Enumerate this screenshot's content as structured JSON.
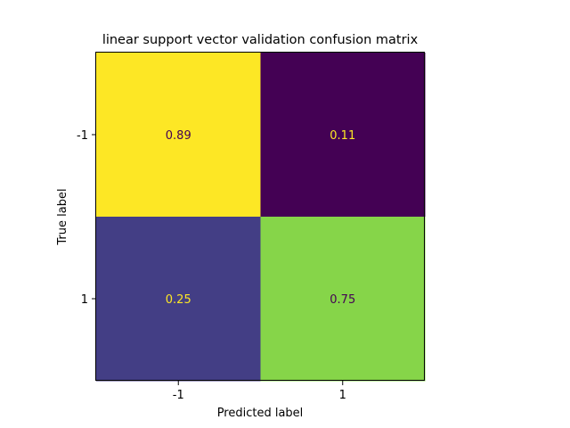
{
  "chart_data": {
    "type": "heatmap",
    "title": "linear support vector validation confusion matrix",
    "xlabel": "Predicted label",
    "ylabel": "True label",
    "x_categories": [
      "-1",
      "1"
    ],
    "y_categories": [
      "-1",
      "1"
    ],
    "values": [
      [
        0.89,
        0.11
      ],
      [
        0.25,
        0.75
      ]
    ],
    "value_labels": [
      [
        "0.89",
        "0.11"
      ],
      [
        "0.25",
        "0.75"
      ]
    ],
    "colormap": "viridis",
    "colorbar": false,
    "grid": false,
    "cell_colors": [
      [
        "#fde725",
        "#440154"
      ],
      [
        "#433e85",
        "#86d549"
      ]
    ],
    "text_colors": [
      [
        "#440154",
        "#fde725"
      ],
      [
        "#fde725",
        "#440154"
      ]
    ]
  }
}
